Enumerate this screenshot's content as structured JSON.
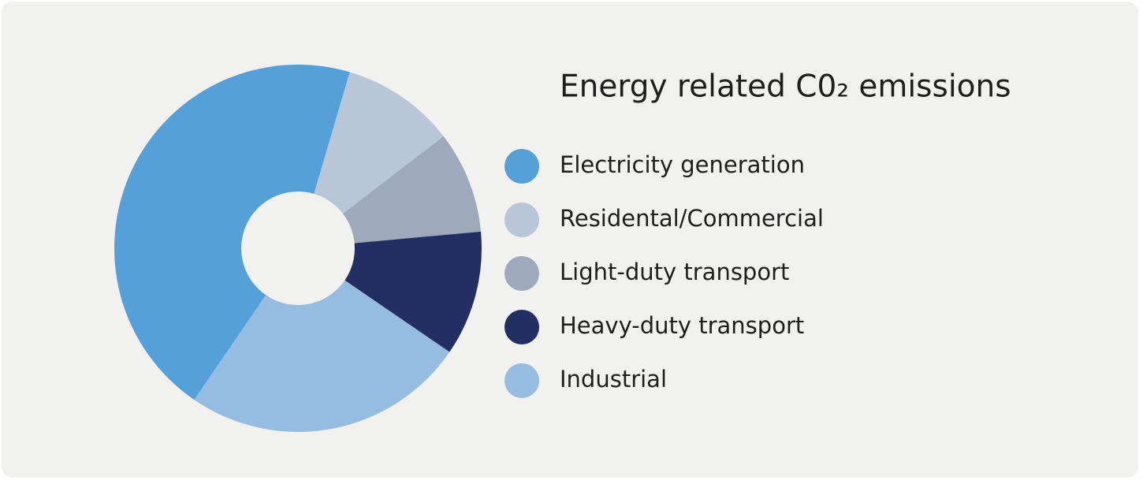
{
  "chart_data": {
    "type": "pie",
    "title": "Energy related C0₂ emissions",
    "categories": [
      "Electricity generation",
      "Residental/Commercial",
      "Light-duty transport",
      "Heavy-duty transport",
      "Industrial"
    ],
    "values": [
      45,
      10,
      9,
      11,
      25
    ],
    "colors": [
      "#55a0d9",
      "#b8c6d8",
      "#9ea9bb",
      "#232f62",
      "#97bce2"
    ]
  }
}
